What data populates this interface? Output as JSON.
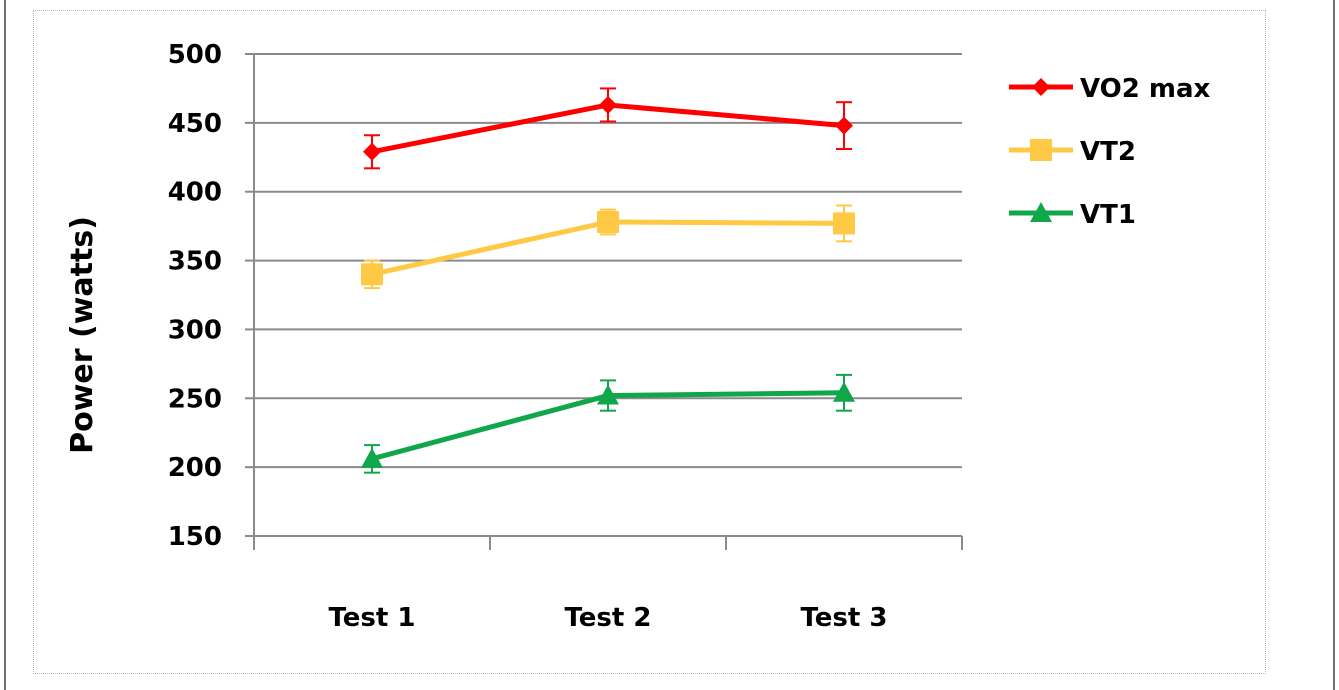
{
  "chart_data": {
    "type": "line",
    "categories": [
      "Test 1",
      "Test 2",
      "Test 3"
    ],
    "ylabel": "Power (watts)",
    "xlabel": "",
    "title": "",
    "ylim": [
      150,
      500
    ],
    "yticks": [
      150,
      200,
      250,
      300,
      350,
      400,
      450,
      500
    ],
    "grid": true,
    "legend_position": "right",
    "error_bars": true,
    "series": [
      {
        "name": "VO2 max",
        "color": "#ff0000",
        "marker": "diamond",
        "values": [
          429,
          463,
          448
        ],
        "errors": [
          12,
          12,
          17
        ]
      },
      {
        "name": "VT2",
        "color": "#ffc845",
        "marker": "square",
        "values": [
          340,
          378,
          377
        ],
        "errors": [
          10,
          9,
          13
        ]
      },
      {
        "name": "VT1",
        "color": "#10a64a",
        "marker": "triangle",
        "values": [
          206,
          252,
          254
        ],
        "errors": [
          10,
          11,
          13
        ]
      }
    ]
  }
}
